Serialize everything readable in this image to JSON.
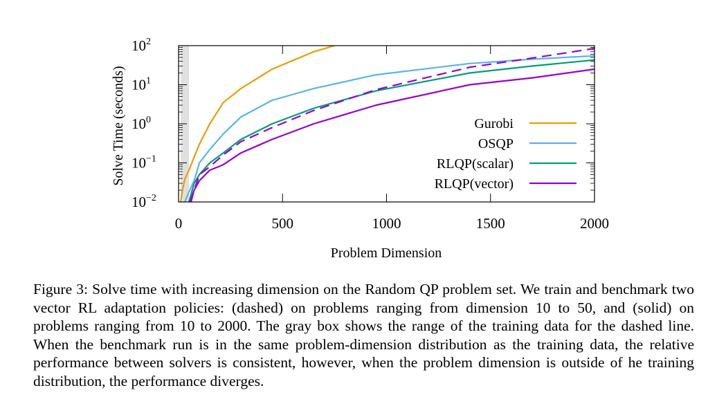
{
  "chart_data": {
    "type": "line",
    "xlabel": "Problem Dimension",
    "ylabel": "Solve Time (seconds)",
    "xlim": [
      0,
      2000
    ],
    "ylim": [
      0.01,
      100
    ],
    "yscale": "log",
    "xticks": [
      0,
      500,
      1000,
      1500,
      2000
    ],
    "xtick_labels": [
      "0",
      "500",
      "1000",
      "1500",
      "2000"
    ],
    "yticks": [
      0.01,
      0.1,
      1,
      10,
      100
    ],
    "ytick_labels": [
      {
        "base": "10",
        "exp": "−2"
      },
      {
        "base": "10",
        "exp": "−1"
      },
      {
        "base": "10",
        "exp": "0"
      },
      {
        "base": "10",
        "exp": "1"
      },
      {
        "base": "10",
        "exp": "2"
      }
    ],
    "shaded_region": {
      "x": [
        10,
        50
      ],
      "color": "#e0e0e0"
    },
    "legend_position": "center-right",
    "series": [
      {
        "name": "Gurobi",
        "color": "#e69f00",
        "dash": "solid",
        "x": [
          10,
          20,
          30,
          50,
          75,
          100,
          150,
          215,
          300,
          450,
          650,
          750
        ],
        "y": [
          0.01,
          0.022,
          0.038,
          0.065,
          0.14,
          0.3,
          1.0,
          3.5,
          8,
          25,
          70,
          100
        ]
      },
      {
        "name": "OSQP",
        "color": "#56b4e9",
        "dash": "solid",
        "x": [
          30,
          50,
          75,
          100,
          150,
          215,
          300,
          450,
          650,
          950,
          1400,
          1700,
          2000
        ],
        "y": [
          0.01,
          0.018,
          0.035,
          0.1,
          0.22,
          0.55,
          1.5,
          4,
          8,
          18,
          35,
          45,
          55
        ]
      },
      {
        "name": "RLQP(scalar)",
        "color": "#009e73",
        "dash": "solid",
        "x": [
          50,
          75,
          100,
          150,
          215,
          300,
          450,
          650,
          950,
          1400,
          1700,
          2000
        ],
        "y": [
          0.01,
          0.03,
          0.05,
          0.1,
          0.18,
          0.4,
          1.0,
          2.5,
          7,
          20,
          30,
          43
        ]
      },
      {
        "name": "RLQP(vector)",
        "color": "#9400d3",
        "dash": "solid",
        "x": [
          55,
          75,
          100,
          150,
          215,
          300,
          450,
          650,
          950,
          1400,
          1700,
          2000
        ],
        "y": [
          0.01,
          0.02,
          0.035,
          0.065,
          0.09,
          0.18,
          0.4,
          1.0,
          3,
          10,
          15,
          25
        ]
      },
      {
        "name": "",
        "color": "#9400d3",
        "dash": "dashed",
        "x": [
          60,
          75,
          100,
          150,
          215,
          300,
          450,
          650,
          950,
          1400,
          1700,
          2000
        ],
        "y": [
          0.01,
          0.02,
          0.05,
          0.08,
          0.16,
          0.35,
          0.8,
          2.2,
          7.5,
          28,
          48,
          85
        ]
      }
    ]
  },
  "legend": [
    {
      "label": "Gurobi",
      "color": "#e69f00"
    },
    {
      "label": "OSQP",
      "color": "#56b4e9"
    },
    {
      "label": "RLQP(scalar)",
      "color": "#009e73"
    },
    {
      "label": "RLQP(vector)",
      "color": "#9400d3"
    }
  ],
  "caption": "Figure 3: Solve time with increasing dimension on the Random QP problem set. We train and benchmark two vector RL adaptation policies: (dashed) on problems ranging from dimension 10 to 50, and (solid) on problems ranging from 10 to 2000. The gray box shows the range of the training data for the dashed line. When the benchmark run is in the same problem-dimension distribution as the training data, the relative performance between solvers is consistent, however, when the problem dimension is outside of he training distribution, the performance diverges."
}
